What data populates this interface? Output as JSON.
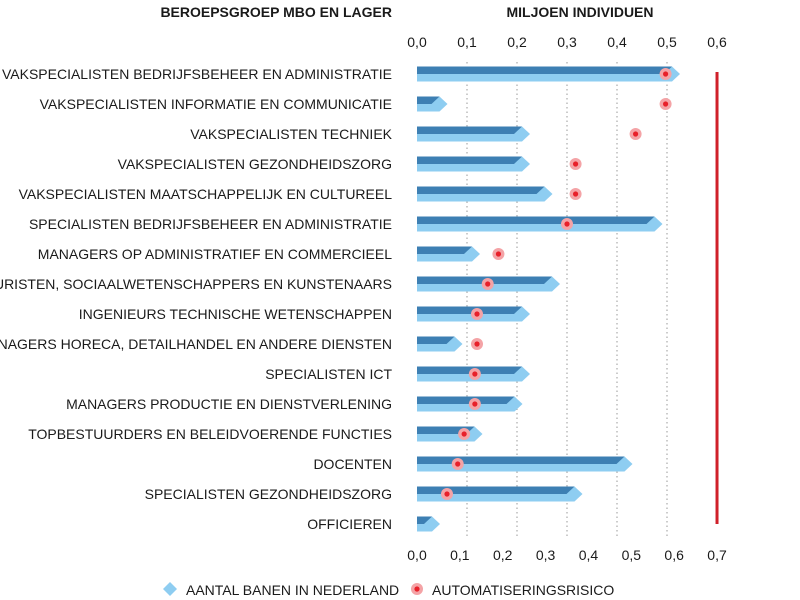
{
  "chart_data": {
    "type": "bar",
    "category_header": "BEROEPSGROEP MBO EN LAGER",
    "top_axis_label": "MILJOEN INDIVIDUEN",
    "top_axis": {
      "range": [
        0,
        0.6
      ],
      "ticks": [
        "0,0",
        "0,1",
        "0,2",
        "0,3",
        "0,4",
        "0,5",
        "0,6"
      ]
    },
    "bottom_axis": {
      "range": [
        0,
        0.7
      ],
      "ticks": [
        "0,0",
        "0,1",
        "0,2",
        "0,3",
        "0,4",
        "0,5",
        "0,6",
        "0,7"
      ]
    },
    "categories": [
      "VAKSPECIALISTEN BEDRIJFSBEHEER EN ADMINISTRATIE",
      "VAKSPECIALISTEN INFORMATIE EN COMMUNICATIE",
      "VAKSPECIALISTEN TECHNIEK",
      "VAKSPECIALISTEN GEZONDHEIDSZORG",
      "VAKSPECIALISTEN MAATSCHAPPELIJK EN CULTUREEL",
      "SPECIALISTEN BEDRIJFSBEHEER EN ADMINISTRATIE",
      "MANAGERS OP ADMINISTRATIEF EN COMMERCIEEL",
      "JURISTEN, SOCIAALWETENSCHAPPERS EN KUNSTENAARS",
      "INGENIEURS TECHNISCHE WETENSCHAPPEN",
      "MANAGERS HORECA, DETAILHANDEL EN ANDERE DIENSTEN",
      "SPECIALISTEN ICT",
      "MANAGERS PRODUCTIE EN DIENSTVERLENING",
      "TOPBESTUURDERS EN BELEIDVOERENDE FUNCTIES",
      "DOCENTEN",
      "SPECIALISTEN GEZONDHEIDSZORG",
      "OFFICIEREN"
    ],
    "series": [
      {
        "name": "AANTAL BANEN IN NEDERLAND",
        "axis": "top",
        "color": "#8ecdf1",
        "shade": "#3d7fb3",
        "values": [
          0.51,
          0.045,
          0.21,
          0.21,
          0.255,
          0.475,
          0.11,
          0.27,
          0.21,
          0.075,
          0.21,
          0.195,
          0.115,
          0.415,
          0.315,
          0.03
        ]
      },
      {
        "name": "AUTOMATISERINGSRISICO",
        "axis": "bottom",
        "color": "#e8202a",
        "halo": "#f4a3a6",
        "values": [
          0.58,
          0.58,
          0.51,
          0.37,
          0.37,
          0.35,
          0.19,
          0.165,
          0.14,
          0.14,
          0.135,
          0.135,
          0.11,
          0.095,
          0.07,
          null
        ]
      }
    ],
    "reference_line": {
      "axis": "bottom",
      "value": 0.7,
      "color": "#d0202a"
    },
    "grid": "vertical dotted",
    "legend_position": "bottom"
  },
  "colors": {
    "bar": "#8ecdf1",
    "bar_shade": "#3d7fb3",
    "risk": "#e8202a",
    "risk_halo": "#f4a3a6",
    "reference": "#d0202a"
  }
}
